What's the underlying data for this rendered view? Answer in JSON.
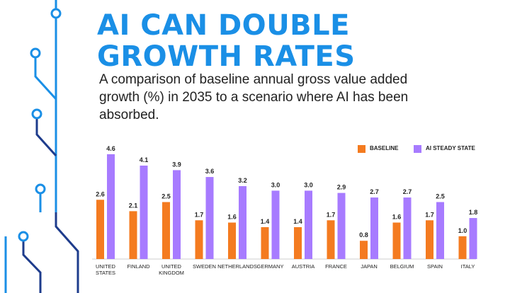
{
  "header": {
    "title_line1": "AI CAN DOUBLE",
    "title_line2": "GROWTH RATES",
    "subtitle": "A comparison of baseline annual gross value added growth (%) in 2035 to a scenario where AI has been absorbed."
  },
  "colors": {
    "title": "#1a8fe6",
    "baseline": "#f47b20",
    "ai_steady_state": "#a77bff",
    "circuit": "#1a8fe6",
    "circuit_dark": "#1e3c8c"
  },
  "chart_data": {
    "type": "bar",
    "title": "",
    "xlabel": "",
    "ylabel": "",
    "ylim": [
      0,
      5
    ],
    "grid": false,
    "legend_position": "top-right",
    "categories": [
      [
        "UNITED",
        "STATES"
      ],
      [
        "FINLAND"
      ],
      [
        "UNITED",
        "KINGDOM"
      ],
      [
        "SWEDEN"
      ],
      [
        "NETHERLANDS"
      ],
      [
        "GERMANY"
      ],
      [
        "AUSTRIA"
      ],
      [
        "FRANCE"
      ],
      [
        "JAPAN"
      ],
      [
        "BELGIUM"
      ],
      [
        "SPAIN"
      ],
      [
        "ITALY"
      ]
    ],
    "series": [
      {
        "name": "BASELINE",
        "values": [
          2.6,
          2.1,
          2.5,
          1.7,
          1.6,
          1.4,
          1.4,
          1.7,
          0.8,
          1.6,
          1.7,
          1.0
        ]
      },
      {
        "name": "AI STEADY STATE",
        "values": [
          4.6,
          4.1,
          3.9,
          3.6,
          3.2,
          3.0,
          3.0,
          2.9,
          2.7,
          2.7,
          2.5,
          1.8
        ]
      }
    ]
  }
}
